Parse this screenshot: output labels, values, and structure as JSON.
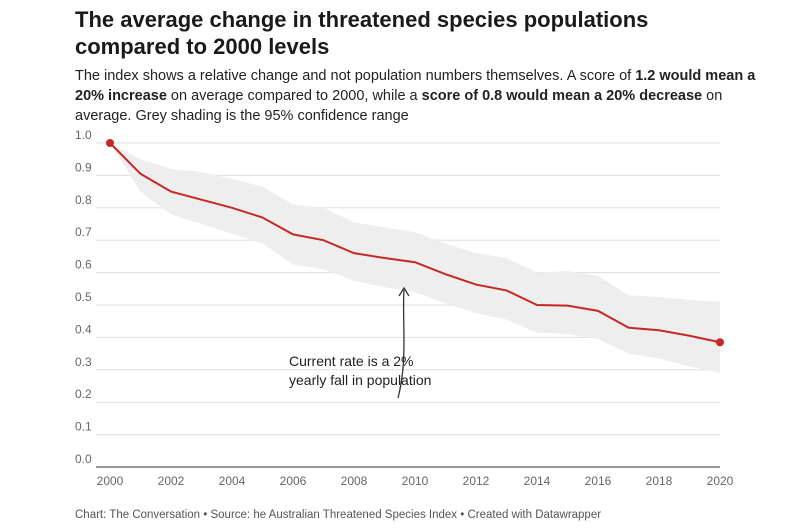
{
  "title": "The average change in threatened species populations compared to 2000 levels",
  "subtitle": {
    "p1": "The index shows a relative change and not population numbers themselves. A score of ",
    "b1": "1.2 would mean a 20% increase",
    "p2": " on average compared to 2000, while a ",
    "b2": "score of 0.8 would mean a 20% decrease",
    "p3": " on average. Grey shading is the 95% confidence range"
  },
  "footer": "Chart: The Conversation • Source: he Australian Threatened Species Index • Created with Datawrapper",
  "chart_data": {
    "type": "line",
    "x": [
      2000,
      2001,
      2002,
      2003,
      2004,
      2005,
      2006,
      2007,
      2008,
      2009,
      2010,
      2011,
      2012,
      2013,
      2014,
      2015,
      2016,
      2017,
      2018,
      2019,
      2020
    ],
    "series": [
      {
        "values": [
          1.0,
          0.905,
          0.85,
          0.825,
          0.8,
          0.77,
          0.718,
          0.7,
          0.66,
          0.645,
          0.632,
          0.595,
          0.563,
          0.545,
          0.5,
          0.498,
          0.482,
          0.43,
          0.422,
          0.405,
          0.385
        ]
      }
    ],
    "band_upper": [
      1.0,
      0.95,
      0.92,
      0.91,
      0.89,
      0.865,
      0.81,
      0.8,
      0.755,
      0.74,
      0.725,
      0.69,
      0.66,
      0.645,
      0.6,
      0.605,
      0.59,
      0.53,
      0.525,
      0.515,
      0.51
    ],
    "band_lower": [
      1.0,
      0.85,
      0.78,
      0.75,
      0.72,
      0.69,
      0.625,
      0.61,
      0.575,
      0.555,
      0.54,
      0.505,
      0.475,
      0.455,
      0.415,
      0.41,
      0.395,
      0.35,
      0.335,
      0.31,
      0.29
    ],
    "xlim": [
      2000,
      2020
    ],
    "ylim": [
      0,
      1.0
    ],
    "xticks": [
      "2000",
      "2002",
      "2004",
      "2006",
      "2008",
      "2010",
      "2012",
      "2014",
      "2016",
      "2018",
      "2020"
    ],
    "yticks": [
      "0.0",
      "0.1",
      "0.2",
      "0.3",
      "0.4",
      "0.5",
      "0.6",
      "0.7",
      "0.8",
      "0.9",
      "1.0"
    ],
    "grid": true,
    "line_color": "#c62828",
    "band_color": "#eeeeee",
    "annotation": {
      "line1": "Current rate is a 2%",
      "line2": "yearly fall in population"
    }
  }
}
